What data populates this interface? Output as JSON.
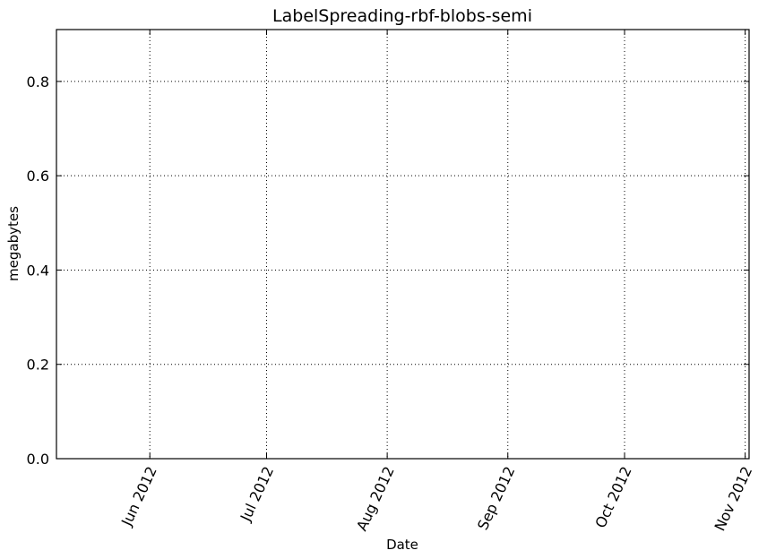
{
  "chart_data": {
    "type": "line",
    "title": "LabelSpreading-rbf-blobs-semi",
    "xlabel": "Date",
    "ylabel": "megabytes",
    "xlim": [
      "2012-05-08",
      "2012-11-02"
    ],
    "ylim": [
      0,
      0.91
    ],
    "x_ticks": [
      {
        "date": "2012-06-01",
        "label": "Jun 2012"
      },
      {
        "date": "2012-07-01",
        "label": "Jul 2012"
      },
      {
        "date": "2012-08-01",
        "label": "Aug 2012"
      },
      {
        "date": "2012-09-01",
        "label": "Sep 2012"
      },
      {
        "date": "2012-10-01",
        "label": "Oct 2012"
      },
      {
        "date": "2012-11-01",
        "label": "Nov 2012"
      }
    ],
    "y_ticks": [
      {
        "value": 0.0,
        "label": "0.0"
      },
      {
        "value": 0.2,
        "label": "0.2"
      },
      {
        "value": 0.4,
        "label": "0.4"
      },
      {
        "value": 0.6,
        "label": "0.6"
      },
      {
        "value": 0.8,
        "label": "0.8"
      }
    ],
    "grid": true,
    "series": []
  }
}
